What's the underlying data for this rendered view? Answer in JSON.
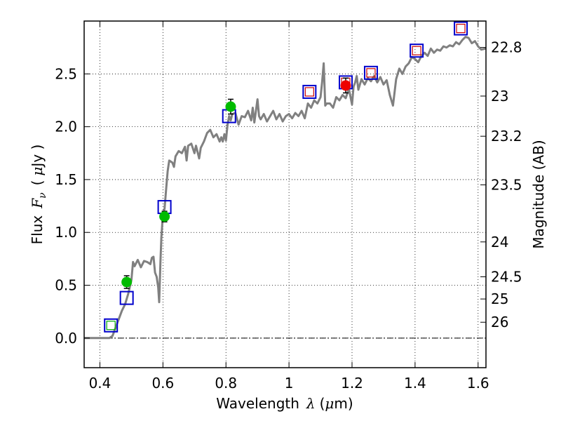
{
  "chart_data": {
    "type": "line",
    "xlabel_text": "Wavelength",
    "xlabel_symbol": "λ",
    "xlabel_unit_open": "(",
    "xlabel_unit_mu": "μ",
    "xlabel_unit_rest": "m)",
    "ylabel_text": "Flux",
    "ylabel_symbol": "F",
    "ylabel_sub": "ν",
    "ylabel_unit_open": "(",
    "ylabel_unit_mu": "μ",
    "ylabel_unit_rest": "Jy )",
    "y2label": "Magnitude (AB)",
    "xlim": [
      0.35,
      1.625
    ],
    "ylim": [
      -0.28,
      3.0
    ],
    "grid": true,
    "x_ticks": [
      {
        "value": 0.4,
        "label": "0.4"
      },
      {
        "value": 0.6,
        "label": "0.6"
      },
      {
        "value": 0.8,
        "label": "0.8"
      },
      {
        "value": 1.0,
        "label": "1"
      },
      {
        "value": 1.2,
        "label": "1.2"
      },
      {
        "value": 1.4,
        "label": "1.4"
      },
      {
        "value": 1.6,
        "label": "1.6"
      }
    ],
    "y_ticks": [
      {
        "value": 0.0,
        "label": "0.0"
      },
      {
        "value": 0.5,
        "label": "0.5"
      },
      {
        "value": 1.0,
        "label": "1.0"
      },
      {
        "value": 1.5,
        "label": "1.5"
      },
      {
        "value": 2.0,
        "label": "2.0"
      },
      {
        "value": 2.5,
        "label": "2.5"
      }
    ],
    "mag_ticks": [
      {
        "flux": 2.75,
        "label": "22.8"
      },
      {
        "flux": 2.29,
        "label": "23"
      },
      {
        "flux": 1.91,
        "label": "23.2"
      },
      {
        "flux": 1.45,
        "label": "23.5"
      },
      {
        "flux": 0.91,
        "label": "24"
      },
      {
        "flux": 0.58,
        "label": "24.5"
      },
      {
        "flux": 0.37,
        "label": "25"
      },
      {
        "flux": 0.15,
        "label": "26"
      }
    ],
    "colors": {
      "spectrum": "#808080",
      "blue_square": "#0000cc",
      "red_square": "#cc0000",
      "green_inner": "#00aa00",
      "green_point": "#00bb00",
      "red_point": "#ee0000",
      "error_bar": "#000000",
      "grid": "#000000"
    },
    "spectrum": {
      "name": "model spectrum",
      "points": [
        [
          0.35,
          0.0
        ],
        [
          0.43,
          0.0
        ],
        [
          0.44,
          0.02
        ],
        [
          0.45,
          0.1
        ],
        [
          0.46,
          0.18
        ],
        [
          0.47,
          0.26
        ],
        [
          0.48,
          0.32
        ],
        [
          0.49,
          0.42
        ],
        [
          0.5,
          0.55
        ],
        [
          0.505,
          0.72
        ],
        [
          0.51,
          0.68
        ],
        [
          0.52,
          0.74
        ],
        [
          0.53,
          0.67
        ],
        [
          0.54,
          0.73
        ],
        [
          0.55,
          0.72
        ],
        [
          0.56,
          0.7
        ],
        [
          0.565,
          0.76
        ],
        [
          0.57,
          0.77
        ],
        [
          0.575,
          0.62
        ],
        [
          0.58,
          0.58
        ],
        [
          0.585,
          0.48
        ],
        [
          0.588,
          0.34
        ],
        [
          0.592,
          0.72
        ],
        [
          0.595,
          0.95
        ],
        [
          0.6,
          1.18
        ],
        [
          0.605,
          1.22
        ],
        [
          0.61,
          1.4
        ],
        [
          0.615,
          1.58
        ],
        [
          0.62,
          1.68
        ],
        [
          0.63,
          1.66
        ],
        [
          0.635,
          1.62
        ],
        [
          0.64,
          1.72
        ],
        [
          0.65,
          1.77
        ],
        [
          0.66,
          1.75
        ],
        [
          0.67,
          1.81
        ],
        [
          0.675,
          1.68
        ],
        [
          0.68,
          1.82
        ],
        [
          0.69,
          1.84
        ],
        [
          0.7,
          1.75
        ],
        [
          0.705,
          1.82
        ],
        [
          0.715,
          1.7
        ],
        [
          0.72,
          1.8
        ],
        [
          0.73,
          1.86
        ],
        [
          0.74,
          1.94
        ],
        [
          0.75,
          1.97
        ],
        [
          0.76,
          1.9
        ],
        [
          0.77,
          1.93
        ],
        [
          0.78,
          1.86
        ],
        [
          0.785,
          1.9
        ],
        [
          0.79,
          1.86
        ],
        [
          0.795,
          1.93
        ],
        [
          0.8,
          1.87
        ],
        [
          0.805,
          2.02
        ],
        [
          0.81,
          2.1
        ],
        [
          0.815,
          2.06
        ],
        [
          0.82,
          2.12
        ],
        [
          0.83,
          2.13
        ],
        [
          0.84,
          2.02
        ],
        [
          0.85,
          2.1
        ],
        [
          0.86,
          2.09
        ],
        [
          0.87,
          2.15
        ],
        [
          0.88,
          2.06
        ],
        [
          0.885,
          2.18
        ],
        [
          0.89,
          2.04
        ],
        [
          0.9,
          2.26
        ],
        [
          0.905,
          2.1
        ],
        [
          0.91,
          2.07
        ],
        [
          0.92,
          2.12
        ],
        [
          0.93,
          2.05
        ],
        [
          0.94,
          2.1
        ],
        [
          0.95,
          2.15
        ],
        [
          0.96,
          2.07
        ],
        [
          0.97,
          2.12
        ],
        [
          0.98,
          2.05
        ],
        [
          0.99,
          2.1
        ],
        [
          1.0,
          2.12
        ],
        [
          1.01,
          2.08
        ],
        [
          1.02,
          2.13
        ],
        [
          1.03,
          2.1
        ],
        [
          1.04,
          2.15
        ],
        [
          1.05,
          2.08
        ],
        [
          1.06,
          2.22
        ],
        [
          1.07,
          2.18
        ],
        [
          1.08,
          2.25
        ],
        [
          1.09,
          2.22
        ],
        [
          1.1,
          2.28
        ],
        [
          1.105,
          2.42
        ],
        [
          1.11,
          2.6
        ],
        [
          1.115,
          2.2
        ],
        [
          1.12,
          2.22
        ],
        [
          1.13,
          2.22
        ],
        [
          1.14,
          2.18
        ],
        [
          1.15,
          2.28
        ],
        [
          1.16,
          2.25
        ],
        [
          1.17,
          2.3
        ],
        [
          1.18,
          2.27
        ],
        [
          1.19,
          2.36
        ],
        [
          1.2,
          2.21
        ],
        [
          1.205,
          2.38
        ],
        [
          1.21,
          2.42
        ],
        [
          1.215,
          2.48
        ],
        [
          1.22,
          2.35
        ],
        [
          1.23,
          2.45
        ],
        [
          1.24,
          2.4
        ],
        [
          1.25,
          2.46
        ],
        [
          1.26,
          2.43
        ],
        [
          1.27,
          2.48
        ],
        [
          1.28,
          2.42
        ],
        [
          1.29,
          2.47
        ],
        [
          1.3,
          2.4
        ],
        [
          1.31,
          2.44
        ],
        [
          1.32,
          2.3
        ],
        [
          1.33,
          2.2
        ],
        [
          1.34,
          2.45
        ],
        [
          1.35,
          2.55
        ],
        [
          1.36,
          2.5
        ],
        [
          1.37,
          2.57
        ],
        [
          1.38,
          2.6
        ],
        [
          1.39,
          2.66
        ],
        [
          1.4,
          2.64
        ],
        [
          1.41,
          2.61
        ],
        [
          1.42,
          2.67
        ],
        [
          1.43,
          2.7
        ],
        [
          1.44,
          2.67
        ],
        [
          1.45,
          2.74
        ],
        [
          1.46,
          2.7
        ],
        [
          1.47,
          2.73
        ],
        [
          1.48,
          2.72
        ],
        [
          1.49,
          2.76
        ],
        [
          1.5,
          2.75
        ],
        [
          1.51,
          2.77
        ],
        [
          1.52,
          2.76
        ],
        [
          1.53,
          2.8
        ],
        [
          1.54,
          2.78
        ],
        [
          1.55,
          2.82
        ],
        [
          1.56,
          2.85
        ],
        [
          1.57,
          2.84
        ],
        [
          1.58,
          2.79
        ],
        [
          1.59,
          2.81
        ],
        [
          1.6,
          2.76
        ],
        [
          1.61,
          2.73
        ],
        [
          1.625,
          2.74
        ]
      ]
    },
    "model_bands": [
      {
        "x": 0.435,
        "y": 0.12,
        "color": "blue",
        "inner": "green"
      },
      {
        "x": 0.485,
        "y": 0.38,
        "color": "blue",
        "inner": "none"
      },
      {
        "x": 0.605,
        "y": 1.24,
        "color": "blue",
        "inner": "none"
      },
      {
        "x": 0.81,
        "y": 2.1,
        "color": "blue",
        "inner": "none"
      },
      {
        "x": 1.065,
        "y": 2.33,
        "color": "blue",
        "inner": "red"
      },
      {
        "x": 1.18,
        "y": 2.42,
        "color": "blue",
        "inner": "red"
      },
      {
        "x": 1.26,
        "y": 2.51,
        "color": "blue",
        "inner": "red"
      },
      {
        "x": 1.405,
        "y": 2.72,
        "color": "blue",
        "inner": "red"
      },
      {
        "x": 1.545,
        "y": 2.93,
        "color": "blue",
        "inner": "red"
      }
    ],
    "observed_points": [
      {
        "x": 0.485,
        "y": 0.53,
        "err": 0.06,
        "color": "green"
      },
      {
        "x": 0.605,
        "y": 1.15,
        "err": 0.05,
        "color": "green"
      },
      {
        "x": 0.815,
        "y": 2.19,
        "err": 0.07,
        "color": "green"
      },
      {
        "x": 1.18,
        "y": 2.39,
        "err": 0.07,
        "color": "red"
      }
    ]
  }
}
